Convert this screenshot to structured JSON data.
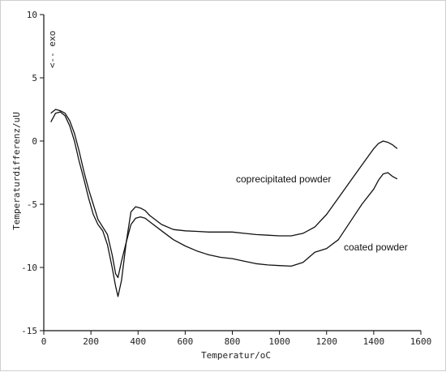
{
  "chart_data": {
    "type": "line",
    "title": "",
    "xlabel": "Temperatur/oC",
    "ylabel": "Temperaturdifferenz/uU",
    "xlim": [
      0,
      1600
    ],
    "ylim": [
      -15,
      10
    ],
    "x_ticks": [
      0,
      200,
      400,
      600,
      800,
      1000,
      1200,
      1400,
      1600
    ],
    "y_ticks": [
      10,
      5,
      0,
      -5,
      -10,
      -15
    ],
    "grid": false,
    "exo_marker": "<-- exo",
    "series": [
      {
        "name": "coprecipitated powder",
        "x": [
          30,
          50,
          70,
          90,
          110,
          130,
          150,
          170,
          190,
          210,
          230,
          250,
          270,
          290,
          305,
          315,
          330,
          350,
          370,
          390,
          410,
          430,
          450,
          500,
          550,
          600,
          650,
          700,
          750,
          800,
          850,
          900,
          950,
          1000,
          1050,
          1100,
          1150,
          1200,
          1250,
          1300,
          1350,
          1400,
          1420,
          1440,
          1460,
          1480,
          1500
        ],
        "y": [
          1.5,
          2.2,
          2.3,
          2.0,
          1.2,
          0.0,
          -1.6,
          -3.0,
          -4.5,
          -5.8,
          -6.6,
          -7.1,
          -8.2,
          -10.0,
          -11.5,
          -12.3,
          -11.0,
          -8.0,
          -5.6,
          -5.2,
          -5.3,
          -5.5,
          -5.9,
          -6.6,
          -7.0,
          -7.1,
          -7.15,
          -7.2,
          -7.2,
          -7.2,
          -7.3,
          -7.4,
          -7.45,
          -7.5,
          -7.5,
          -7.3,
          -6.8,
          -5.8,
          -4.5,
          -3.2,
          -1.9,
          -0.6,
          -0.2,
          0.0,
          -0.1,
          -0.3,
          -0.6
        ]
      },
      {
        "name": "coated powder",
        "x": [
          30,
          50,
          70,
          90,
          110,
          130,
          150,
          170,
          190,
          210,
          230,
          250,
          270,
          290,
          305,
          315,
          330,
          350,
          370,
          390,
          410,
          430,
          450,
          500,
          550,
          600,
          650,
          700,
          750,
          800,
          850,
          900,
          950,
          1000,
          1050,
          1100,
          1150,
          1200,
          1250,
          1300,
          1350,
          1400,
          1420,
          1440,
          1460,
          1480,
          1500
        ],
        "y": [
          2.2,
          2.5,
          2.4,
          2.2,
          1.6,
          0.6,
          -0.8,
          -2.4,
          -3.8,
          -5.0,
          -6.2,
          -6.8,
          -7.4,
          -9.0,
          -10.5,
          -10.8,
          -9.5,
          -8.0,
          -6.6,
          -6.1,
          -6.0,
          -6.1,
          -6.4,
          -7.1,
          -7.8,
          -8.3,
          -8.7,
          -9.0,
          -9.2,
          -9.3,
          -9.5,
          -9.7,
          -9.8,
          -9.85,
          -9.9,
          -9.6,
          -8.8,
          -8.5,
          -7.8,
          -6.4,
          -5.0,
          -3.8,
          -3.1,
          -2.6,
          -2.5,
          -2.8,
          -3.0
        ]
      }
    ]
  }
}
